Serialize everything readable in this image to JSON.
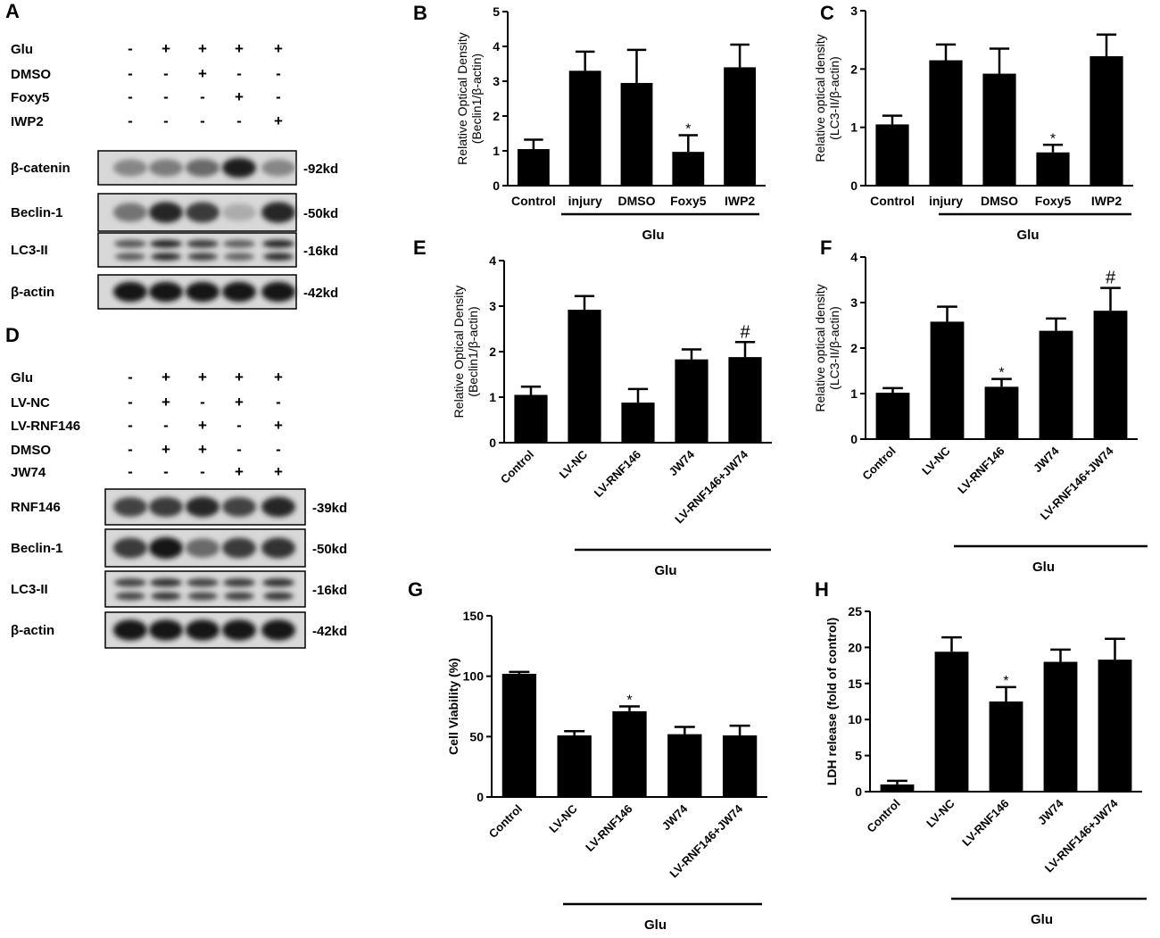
{
  "panels": {
    "A": "A",
    "B": "B",
    "C": "C",
    "D": "D",
    "E": "E",
    "F": "F",
    "G": "G",
    "H": "H"
  },
  "blot_A": {
    "treatments": [
      {
        "label": "Glu",
        "signs": [
          "-",
          "+",
          "+",
          "+",
          "+"
        ]
      },
      {
        "label": "DMSO",
        "signs": [
          "-",
          "-",
          "+",
          "-",
          "-"
        ]
      },
      {
        "label": "Foxy5",
        "signs": [
          "-",
          "-",
          "-",
          "+",
          "-"
        ]
      },
      {
        "label": "IWP2",
        "signs": [
          "-",
          "-",
          "-",
          "-",
          "+"
        ]
      }
    ],
    "rows": [
      {
        "label": "β-catenin",
        "size": "-92kd",
        "intensity": [
          0.35,
          0.4,
          0.5,
          0.9,
          0.35
        ],
        "doublet": false
      },
      {
        "label": "Beclin-1",
        "size": "-50kd",
        "intensity": [
          0.45,
          0.85,
          0.75,
          0.15,
          0.85
        ],
        "doublet": false
      },
      {
        "label": "LC3-II",
        "size": "-16kd",
        "intensity": [
          0.6,
          0.85,
          0.75,
          0.55,
          0.85
        ],
        "doublet": true
      },
      {
        "label": "β-actin",
        "size": "-42kd",
        "intensity": [
          0.95,
          0.95,
          0.95,
          0.95,
          0.95
        ],
        "doublet": false
      }
    ]
  },
  "blot_D": {
    "treatments": [
      {
        "label": "Glu",
        "signs": [
          "-",
          "+",
          "+",
          "+",
          "+"
        ]
      },
      {
        "label": "LV-NC",
        "signs": [
          "-",
          "+",
          "-",
          "+",
          "-"
        ]
      },
      {
        "label": "LV-RNF146",
        "signs": [
          "-",
          "-",
          "+",
          "-",
          "+"
        ]
      },
      {
        "label": "DMSO",
        "signs": [
          "-",
          "+",
          "+",
          "-",
          "-"
        ]
      },
      {
        "label": "JW74",
        "signs": [
          "-",
          "-",
          "-",
          "+",
          "+"
        ]
      }
    ],
    "rows": [
      {
        "label": "RNF146",
        "size": "-39kd",
        "intensity": [
          0.7,
          0.75,
          0.85,
          0.7,
          0.85
        ],
        "doublet": false
      },
      {
        "label": "Beclin-1",
        "size": "-50kd",
        "intensity": [
          0.75,
          0.95,
          0.5,
          0.75,
          0.8
        ],
        "doublet": false
      },
      {
        "label": "LC3-II",
        "size": "-16kd",
        "intensity": [
          0.7,
          0.8,
          0.7,
          0.75,
          0.8
        ],
        "doublet": true
      },
      {
        "label": "β-actin",
        "size": "-42kd",
        "intensity": [
          0.95,
          0.95,
          0.95,
          0.95,
          0.95
        ],
        "doublet": false
      }
    ]
  },
  "chart_data": [
    {
      "panel": "B",
      "type": "bar",
      "categories": [
        "Control",
        "injury",
        "DMSO",
        "Foxy5",
        "IWP2"
      ],
      "values": [
        1.05,
        3.3,
        2.95,
        0.97,
        3.4
      ],
      "errors": [
        0.27,
        0.55,
        0.95,
        0.48,
        0.65
      ],
      "marks": [
        "",
        "",
        "",
        "*",
        ""
      ],
      "ylabel_lines": [
        "Relative Optical Density",
        "(Beclin1/β-actin)"
      ],
      "ylim": [
        0,
        5
      ],
      "yticks": [
        0,
        1,
        2,
        3,
        4,
        5
      ],
      "group_label": "Glu",
      "rotated": false
    },
    {
      "panel": "C",
      "type": "bar",
      "categories": [
        "Control",
        "injury",
        "DMSO",
        "Foxy5",
        "IWP2"
      ],
      "values": [
        1.05,
        2.15,
        1.92,
        0.57,
        2.22
      ],
      "errors": [
        0.15,
        0.27,
        0.43,
        0.13,
        0.37
      ],
      "marks": [
        "",
        "",
        "",
        "*",
        ""
      ],
      "ylabel_lines": [
        "Relative optical density",
        "(LC3-II/β-actin)"
      ],
      "ylim": [
        0,
        3
      ],
      "yticks": [
        0,
        1,
        2,
        3
      ],
      "group_label": "Glu",
      "rotated": false
    },
    {
      "panel": "E",
      "type": "bar",
      "categories": [
        "Control",
        "LV-NC",
        "LV-RNF146",
        "JW74",
        "LV-RNF146+JW74"
      ],
      "values": [
        1.05,
        2.92,
        0.88,
        1.83,
        1.88
      ],
      "errors": [
        0.18,
        0.3,
        0.3,
        0.22,
        0.33
      ],
      "marks": [
        "",
        "",
        "",
        "",
        "#"
      ],
      "ylabel_lines": [
        "Relative Optical Density",
        "(Beclin1/β-actin)"
      ],
      "ylim": [
        0,
        4
      ],
      "yticks": [
        0,
        1,
        2,
        3,
        4
      ],
      "group_label": "Glu",
      "rotated": true
    },
    {
      "panel": "F",
      "type": "bar",
      "categories": [
        "Control",
        "LV-NC",
        "LV-RNF146",
        "JW74",
        "LV-RNF146+JW74"
      ],
      "values": [
        1.02,
        2.58,
        1.15,
        2.38,
        2.82
      ],
      "errors": [
        0.1,
        0.33,
        0.17,
        0.27,
        0.5
      ],
      "marks": [
        "",
        "",
        "*",
        "",
        "#"
      ],
      "ylabel_lines": [
        "Relative optical density",
        "(LC3-II/β-actin)"
      ],
      "ylim": [
        0,
        4
      ],
      "yticks": [
        0,
        1,
        2,
        3,
        4
      ],
      "group_label": "Glu",
      "rotated": true
    },
    {
      "panel": "G",
      "type": "bar",
      "categories": [
        "Control",
        "LV-NC",
        "LV-RNF146",
        "JW74",
        "LV-RNF146+JW74"
      ],
      "values": [
        102,
        51,
        71,
        52,
        51
      ],
      "errors": [
        1.5,
        3.5,
        4,
        6,
        8
      ],
      "marks": [
        "",
        "",
        "*",
        "",
        ""
      ],
      "ylabel_lines": [
        "Cell Viability (%)"
      ],
      "ylim": [
        0,
        150
      ],
      "yticks": [
        0,
        50,
        100,
        150
      ],
      "group_label": "Glu",
      "rotated": true
    },
    {
      "panel": "H",
      "type": "bar",
      "categories": [
        "Control",
        "LV-NC",
        "LV-RNF146",
        "JW74",
        "LV-RNF146+JW74"
      ],
      "values": [
        1,
        19.4,
        12.5,
        18,
        18.3
      ],
      "errors": [
        0.5,
        2,
        2,
        1.7,
        2.9
      ],
      "marks": [
        "",
        "",
        "*",
        "",
        ""
      ],
      "ylabel_lines": [
        "LDH release (fold of control)"
      ],
      "ylim": [
        0,
        25
      ],
      "yticks": [
        0,
        5,
        10,
        15,
        20,
        25
      ],
      "group_label": "Glu",
      "rotated": true
    }
  ]
}
